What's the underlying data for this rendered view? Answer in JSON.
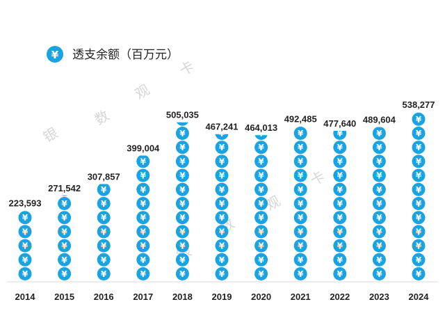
{
  "chart_data": {
    "type": "bar",
    "title": "",
    "xlabel": "",
    "ylabel": "",
    "categories": [
      "2014",
      "2015",
      "2016",
      "2017",
      "2018",
      "2019",
      "2020",
      "2021",
      "2022",
      "2023",
      "2024"
    ],
    "series": [
      {
        "name": "透支余额（百万元）",
        "values": [
          223593,
          271542,
          307857,
          399004,
          505035,
          467241,
          464013,
          492485,
          477640,
          489604,
          538277
        ],
        "labels": [
          "223,593",
          "271,542",
          "307,857",
          "399,004",
          "505,035",
          "467,241",
          "464,013",
          "492,485",
          "477,640",
          "489,604",
          "538,277"
        ]
      }
    ],
    "ylim": [
      0,
      600000
    ],
    "grid": false,
    "legend": "top-left",
    "legend_icon": "yuan-coin-icon",
    "coin_glyph": "¥",
    "bar_color": "#1aa3e0",
    "watermark": [
      "银",
      "数",
      "观",
      "卡"
    ]
  }
}
